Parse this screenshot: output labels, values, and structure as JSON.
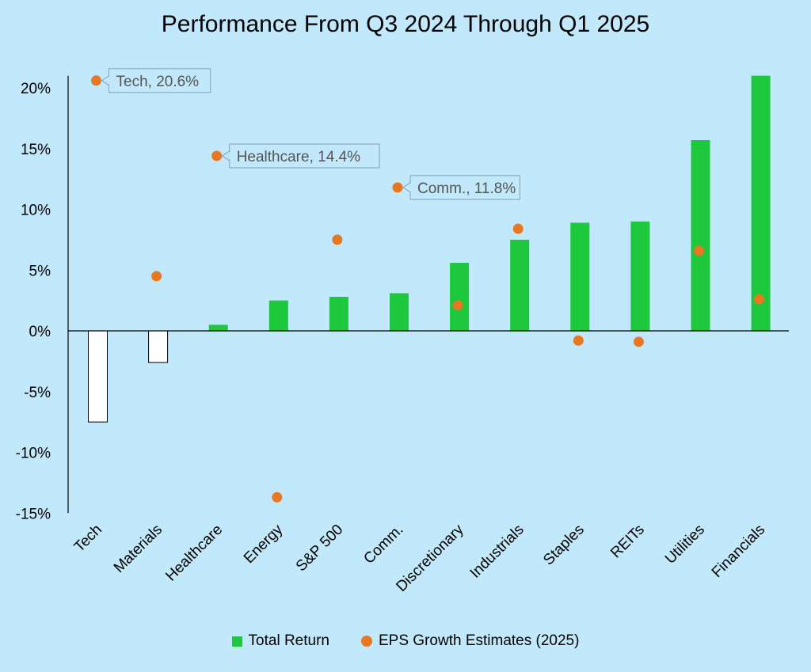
{
  "chart_data": {
    "type": "bar",
    "title": "Performance From Q3 2024 Through Q1 2025",
    "categories": [
      "Tech",
      "Materials",
      "Healthcare",
      "Energy",
      "S&P 500",
      "Comm.",
      "Discretionary",
      "Industrials",
      "Staples",
      "REITs",
      "Utilities",
      "Financials"
    ],
    "series": [
      {
        "name": "Total Return",
        "kind": "bar",
        "color_positive": "#1ec83c",
        "color_negative": "#ffffff",
        "values": [
          -7.5,
          -2.6,
          0.5,
          2.5,
          2.8,
          3.1,
          5.6,
          7.5,
          8.9,
          9.0,
          15.7,
          21.0
        ]
      },
      {
        "name": "EPS Growth Estimates (2025)",
        "kind": "scatter",
        "color": "#e87722",
        "values": [
          20.6,
          4.5,
          14.4,
          -13.7,
          7.5,
          11.8,
          2.1,
          8.4,
          -0.8,
          -0.9,
          6.6,
          2.6
        ]
      }
    ],
    "ylim": [
      -15,
      21
    ],
    "yticks": [
      20,
      15,
      10,
      5,
      0,
      -5,
      -10,
      -15
    ],
    "ytick_labels": [
      "20%",
      "15%",
      "10%",
      "5%",
      "0%",
      "-5%",
      "-10%",
      "-15%"
    ],
    "annotations": [
      {
        "index": 0,
        "text": "Tech, 20.6%"
      },
      {
        "index": 2,
        "text": "Healthcare, 14.4%"
      },
      {
        "index": 5,
        "text": "Comm., 11.8%"
      }
    ],
    "legend": "bottom",
    "grid": false
  }
}
